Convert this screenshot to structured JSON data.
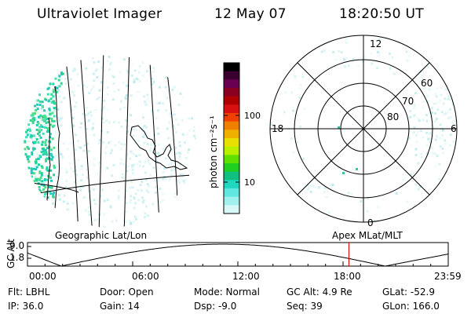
{
  "header": {
    "instrument": "Ultraviolet Imager",
    "date": "12 May 07",
    "time": "18:20:50 UT"
  },
  "colorbar": {
    "unit_label": "photon cm⁻²s⁻¹",
    "ticks": [
      "100",
      "10"
    ],
    "colors": [
      "#000000",
      "#3a0030",
      "#6a0050",
      "#8a0020",
      "#b00000",
      "#d81010",
      "#f04000",
      "#f08000",
      "#f0b000",
      "#e8e000",
      "#b8f000",
      "#60e000",
      "#20d020",
      "#10c080",
      "#20d8c0",
      "#60e8e0",
      "#a0f0f0",
      "#d8f8f8"
    ]
  },
  "polar_plot": {
    "mlt_labels": [
      "12",
      "18",
      "6",
      "0"
    ],
    "lat_labels": [
      "60",
      "70",
      "80"
    ]
  },
  "timeline": {
    "left_label": "Geographic Lat/Lon",
    "right_label": "Apex MLat/MLT",
    "y_axis_label": "GC Alt",
    "y_ticks": [
      "9.0",
      "1.8"
    ],
    "x_ticks": [
      "00:00",
      "06:00",
      "12:00",
      "18:00",
      "23:59"
    ],
    "current_time_fraction": 0.764
  },
  "info": {
    "filter": "Flt: LBHL",
    "ip": "IP: 36.0",
    "door": "Door: Open",
    "gain": "Gain: 14",
    "mode": "Mode: Normal",
    "dsp": "Dsp:    -9.0",
    "gc_alt": "GC Alt: 4.9 Re",
    "seq": "Seq: 39",
    "glat": "GLat: -52.9",
    "glon": "GLon: 166.0"
  }
}
